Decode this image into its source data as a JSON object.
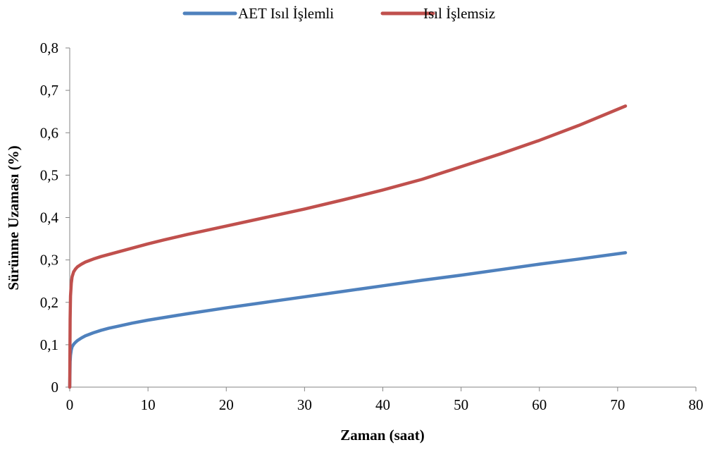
{
  "chart_data": {
    "type": "line",
    "title": "",
    "xlabel": "Zaman (saat)",
    "ylabel": "Sürünme Uzaması (%)",
    "xlim": [
      0,
      80
    ],
    "ylim": [
      0,
      0.8
    ],
    "x_ticks": [
      0,
      10,
      20,
      30,
      40,
      50,
      60,
      70,
      80
    ],
    "x_tick_labels": [
      "0",
      "10",
      "20",
      "30",
      "40",
      "50",
      "60",
      "70",
      "80"
    ],
    "y_ticks": [
      0,
      0.1,
      0.2,
      0.3,
      0.4,
      0.5,
      0.6,
      0.7,
      0.8
    ],
    "y_tick_labels": [
      "0",
      "0,1",
      "0,2",
      "0,3",
      "0,4",
      "0,5",
      "0,6",
      "0,7",
      "0,8"
    ],
    "grid": false,
    "legend_position": "top",
    "series": [
      {
        "name": "AET Isıl İşlemli",
        "color": "#4F81BD",
        "x": [
          0,
          0.05,
          0.1,
          0.2,
          0.3,
          0.5,
          0.75,
          1,
          1.5,
          2,
          3,
          4,
          5,
          6,
          8,
          10,
          12,
          15,
          20,
          25,
          30,
          35,
          40,
          45,
          50,
          55,
          60,
          65,
          71
        ],
        "y": [
          0,
          0.06,
          0.075,
          0.088,
          0.095,
          0.101,
          0.106,
          0.11,
          0.116,
          0.121,
          0.128,
          0.134,
          0.139,
          0.143,
          0.151,
          0.158,
          0.164,
          0.173,
          0.187,
          0.2,
          0.213,
          0.226,
          0.239,
          0.252,
          0.264,
          0.277,
          0.29,
          0.302,
          0.317
        ]
      },
      {
        "name": "Isıl İşlemsiz",
        "color": "#C0504D",
        "x": [
          0,
          0.05,
          0.1,
          0.2,
          0.3,
          0.5,
          0.75,
          1,
          1.5,
          2,
          3,
          4,
          5,
          6,
          8,
          10,
          12,
          15,
          20,
          25,
          30,
          35,
          40,
          45,
          50,
          55,
          60,
          65,
          71
        ],
        "y": [
          0,
          0.16,
          0.215,
          0.245,
          0.26,
          0.272,
          0.279,
          0.284,
          0.29,
          0.295,
          0.302,
          0.308,
          0.313,
          0.318,
          0.328,
          0.338,
          0.347,
          0.36,
          0.38,
          0.4,
          0.42,
          0.442,
          0.465,
          0.49,
          0.52,
          0.55,
          0.582,
          0.617,
          0.663
        ]
      }
    ]
  }
}
